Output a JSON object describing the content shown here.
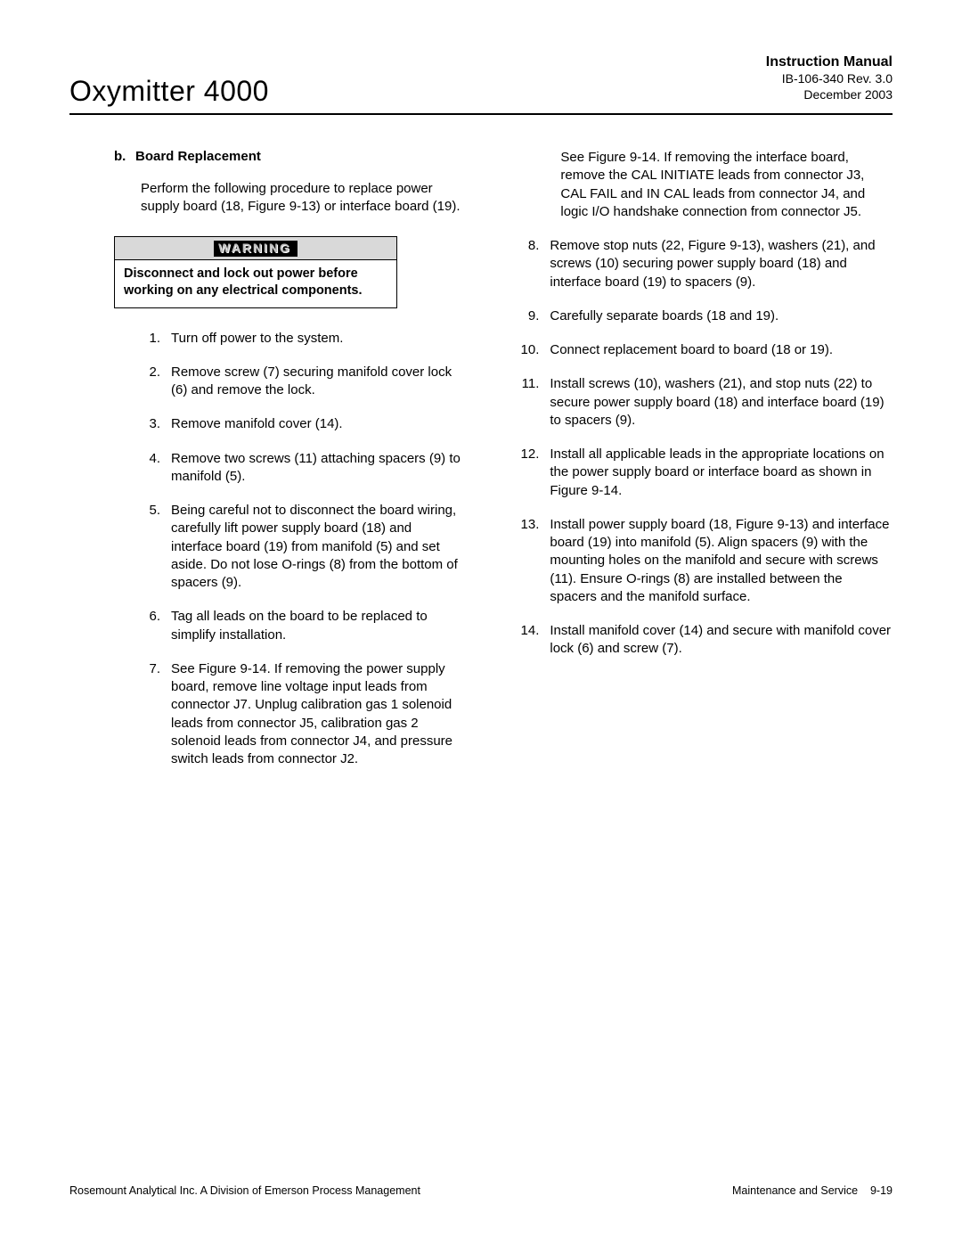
{
  "header": {
    "manual_title": "Instruction Manual",
    "doc_number": "IB-106-340  Rev. 3.0",
    "date": "December 2003",
    "product_title": "Oxymitter 4000"
  },
  "section": {
    "letter": "b.",
    "title": "Board Replacement",
    "intro": "Perform the following procedure to replace power supply board (18, Figure 9-13) or interface board (19)."
  },
  "warning": {
    "label": "WARNING",
    "body": "Disconnect and lock out power before working on any electrical components."
  },
  "steps_left": [
    {
      "n": "1.",
      "t": "Turn off power to the system."
    },
    {
      "n": "2.",
      "t": "Remove screw (7) securing manifold cover lock (6) and remove the lock."
    },
    {
      "n": "3.",
      "t": "Remove manifold cover (14)."
    },
    {
      "n": "4.",
      "t": "Remove two screws (11) attaching spacers (9) to manifold (5)."
    },
    {
      "n": "5.",
      "t": "Being careful not to disconnect the board wiring, carefully lift power supply board (18) and interface board (19) from manifold (5) and set aside. Do not lose O-rings (8) from the bottom of spacers (9)."
    },
    {
      "n": "6.",
      "t": "Tag all leads on the board to be replaced to simplify installation."
    },
    {
      "n": "7.",
      "t": "See Figure 9-14. If removing the power supply board, remove line voltage input leads from connector J7. Unplug calibration gas 1 solenoid leads from connector J5, calibration gas 2 solenoid leads from connector J4, and pressure switch leads from connector J2."
    }
  ],
  "continuation_right": "See Figure 9-14. If removing the interface board, remove the CAL INITIATE leads from connector J3, CAL FAIL and IN CAL leads from connector J4, and logic I/O handshake connection from connector J5.",
  "steps_right": [
    {
      "n": "8.",
      "t": "Remove stop nuts (22, Figure 9-13), washers (21), and screws (10) securing power supply board (18) and interface board (19) to spacers (9)."
    },
    {
      "n": "9.",
      "t": "Carefully separate boards (18 and 19)."
    },
    {
      "n": "10.",
      "t": "Connect replacement board to board (18 or 19)."
    },
    {
      "n": "11.",
      "t": "Install screws (10), washers (21), and stop nuts (22) to secure power supply board (18) and interface board (19) to spacers (9)."
    },
    {
      "n": "12.",
      "t": "Install all applicable leads in the appropriate locations on the power supply board or interface board as shown in Figure 9-14."
    },
    {
      "n": "13.",
      "t": "Install power supply board (18, Figure 9-13) and interface board (19) into manifold (5). Align spacers (9) with the mounting holes on the manifold and secure with screws (11). Ensure O-rings (8) are installed between the spacers and the manifold surface."
    },
    {
      "n": "14.",
      "t": "Install manifold cover (14) and secure with manifold cover lock (6) and screw (7)."
    }
  ],
  "footer": {
    "left": "Rosemount Analytical Inc.    A Division of Emerson Process Management",
    "right_label": "Maintenance and Service",
    "right_page": "9-19"
  }
}
